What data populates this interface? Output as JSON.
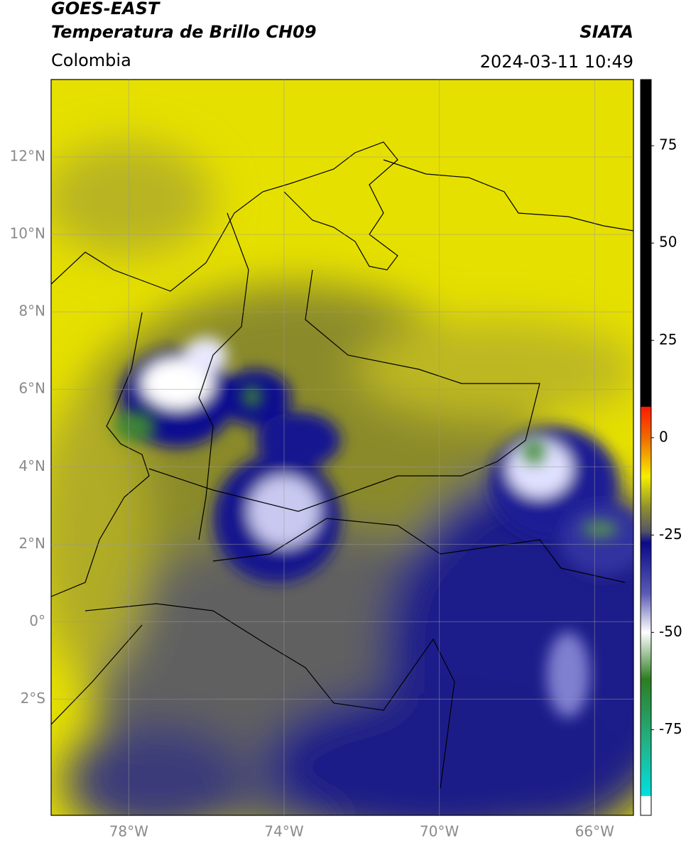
{
  "header": {
    "title": "GOES-EAST",
    "subtitle": "Temperatura de Brillo CH09",
    "source": "SIATA",
    "region": "Colombia",
    "timestamp": "2024-03-11 10:49"
  },
  "map": {
    "lonlim": [
      -80,
      -65
    ],
    "latlim": [
      -5,
      14
    ],
    "lat_ticks": [
      {
        "value": 12,
        "label": "12°N"
      },
      {
        "value": 10,
        "label": "10°N"
      },
      {
        "value": 8,
        "label": "8°N"
      },
      {
        "value": 6,
        "label": "6°N"
      },
      {
        "value": 4,
        "label": "4°N"
      },
      {
        "value": 2,
        "label": "2°N"
      },
      {
        "value": 0,
        "label": "0°"
      },
      {
        "value": -2,
        "label": "2°S"
      }
    ],
    "lon_ticks": [
      {
        "value": -78,
        "label": "78°W"
      },
      {
        "value": -74,
        "label": "74°W"
      },
      {
        "value": -70,
        "label": "70°W"
      },
      {
        "value": -66,
        "label": "66°W"
      }
    ],
    "grid": true
  },
  "colorbar": {
    "lim": [
      -97,
      92
    ],
    "ticks": [
      75,
      50,
      25,
      0,
      -25,
      -50,
      -75
    ],
    "stops": [
      {
        "value": 92,
        "color": "#000000"
      },
      {
        "value": 8,
        "color": "#000000"
      },
      {
        "value": 7.9,
        "color": "#ff1a00"
      },
      {
        "value": 0,
        "color": "#f06a00"
      },
      {
        "value": -10,
        "color": "#f5ef00"
      },
      {
        "value": -18,
        "color": "#8f8f30"
      },
      {
        "value": -24,
        "color": "#555565"
      },
      {
        "value": -27,
        "color": "#0a0a8a"
      },
      {
        "value": -40,
        "color": "#5a5ab5"
      },
      {
        "value": -50,
        "color": "#ffffff"
      },
      {
        "value": -62,
        "color": "#2e7d22"
      },
      {
        "value": -80,
        "color": "#1fb890"
      },
      {
        "value": -92,
        "color": "#00e0e0"
      },
      {
        "value": -92.1,
        "color": "#ffffff"
      },
      {
        "value": -97,
        "color": "#ffffff"
      }
    ]
  }
}
